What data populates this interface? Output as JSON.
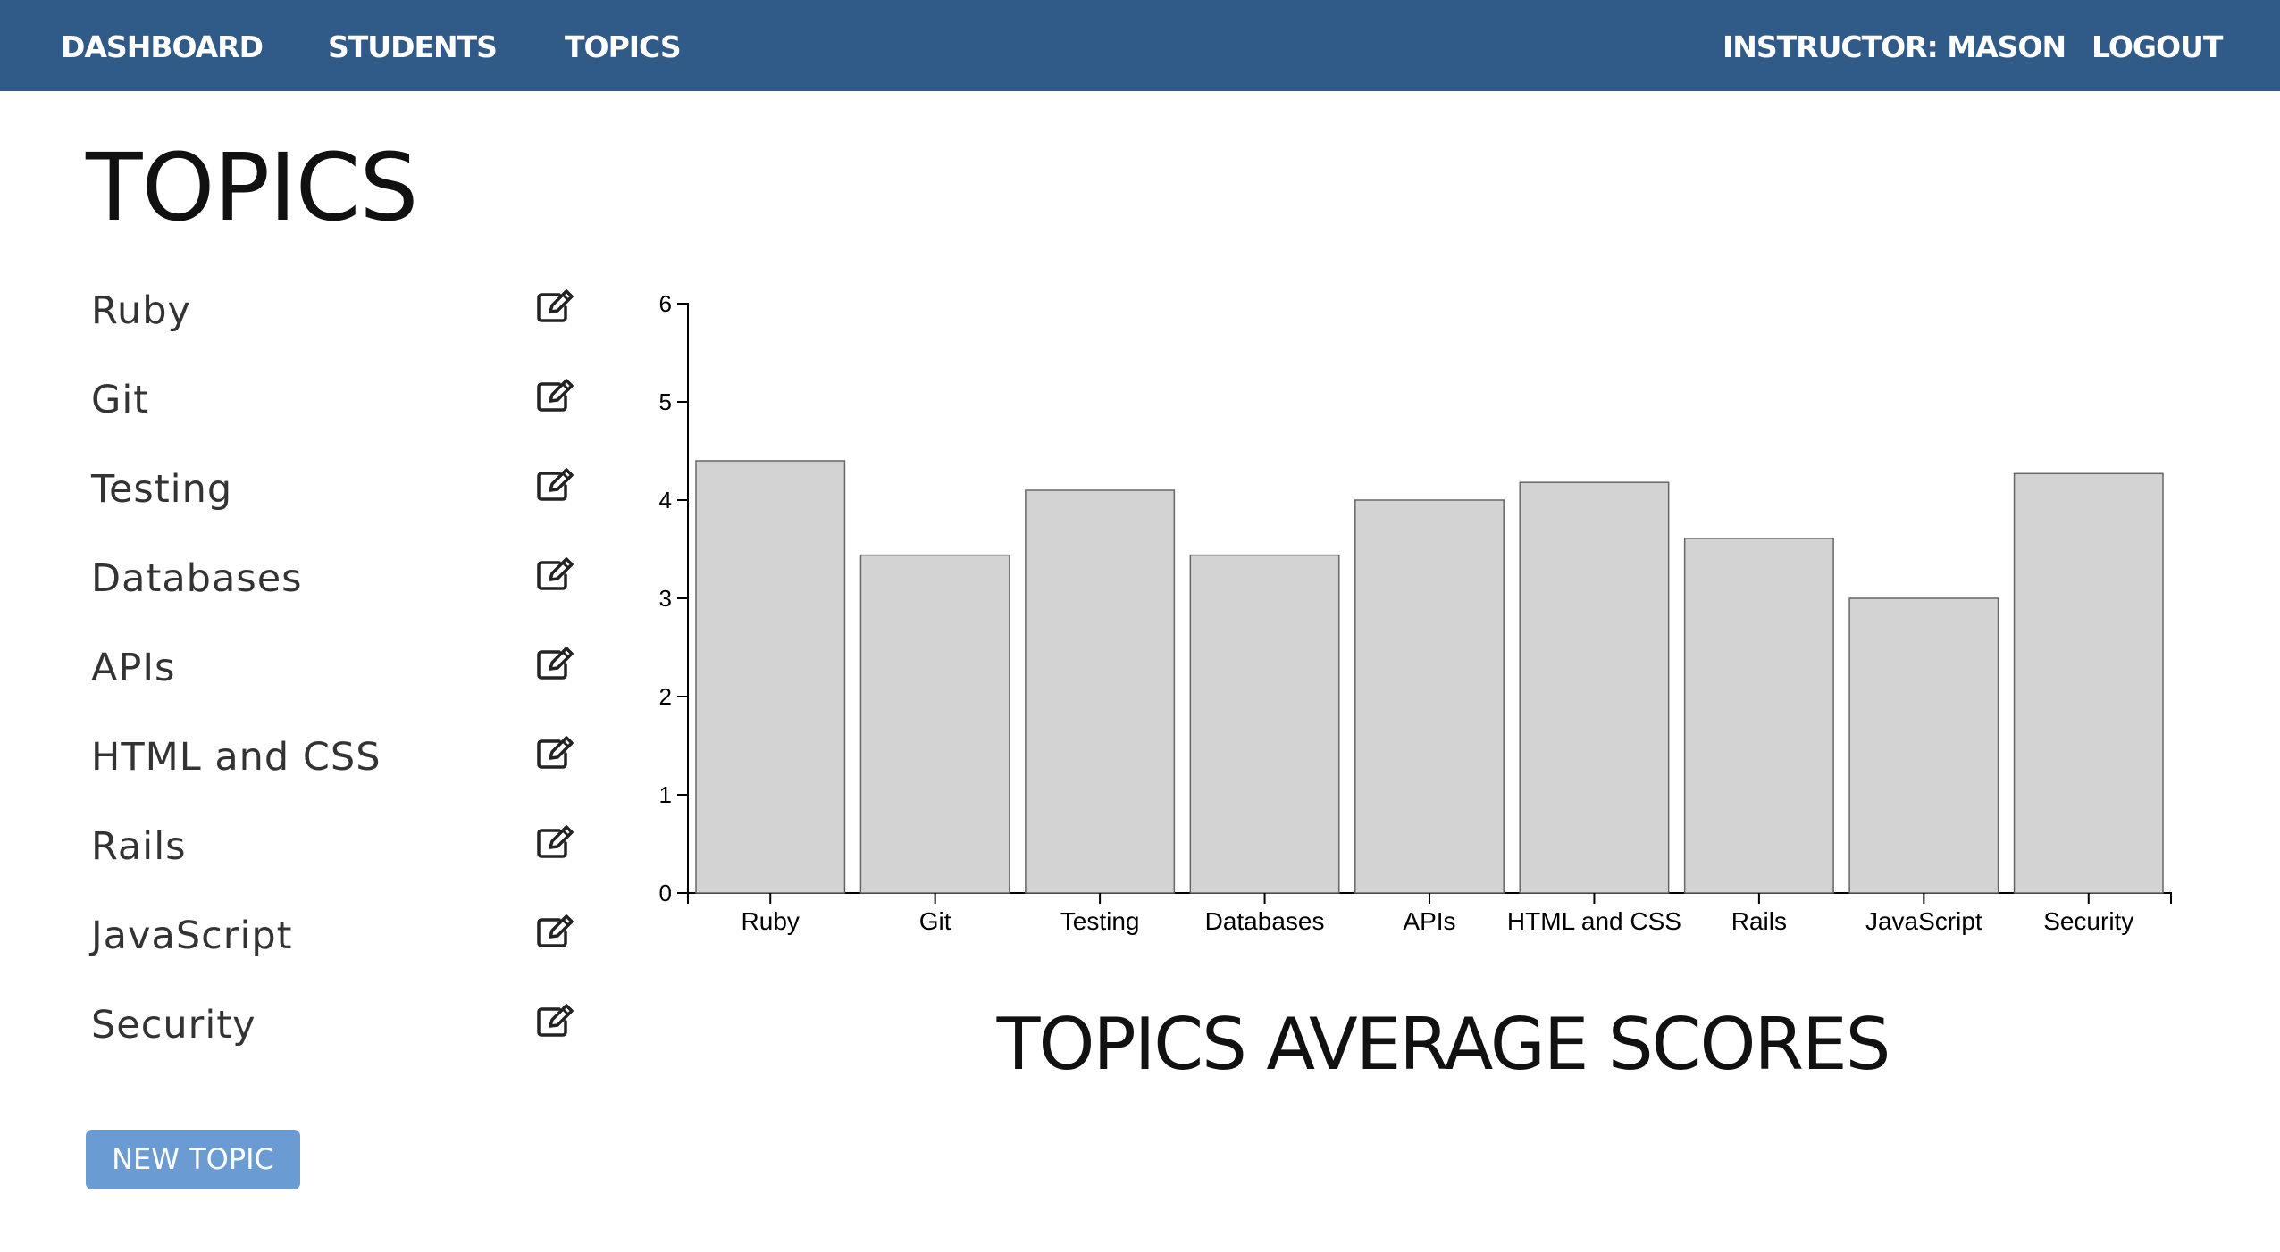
{
  "nav": {
    "dashboard": "DASHBOARD",
    "students": "STUDENTS",
    "topics": "TOPICS",
    "instructor": "INSTRUCTOR: MASON",
    "logout": "LOGOUT"
  },
  "page": {
    "title": "TOPICS",
    "new_topic_label": "NEW TOPIC"
  },
  "topics": [
    {
      "label": "Ruby",
      "icon": "edit-icon"
    },
    {
      "label": "Git",
      "icon": "edit-icon"
    },
    {
      "label": "Testing",
      "icon": "edit-icon"
    },
    {
      "label": "Databases",
      "icon": "edit-icon"
    },
    {
      "label": "APIs",
      "icon": "edit-icon"
    },
    {
      "label": "HTML and CSS",
      "icon": "edit-icon"
    },
    {
      "label": "Rails",
      "icon": "edit-icon"
    },
    {
      "label": "JavaScript",
      "icon": "edit-icon"
    },
    {
      "label": "Security",
      "icon": "edit-icon"
    }
  ],
  "colors": {
    "navbar": "#305a87",
    "button": "#6a9bd3",
    "bar_fill": "#d3d3d3",
    "bar_stroke": "#666666"
  },
  "chart_data": {
    "type": "bar",
    "title": "TOPICS AVERAGE SCORES",
    "categories": [
      "Ruby",
      "Git",
      "Testing",
      "Databases",
      "APIs",
      "HTML and CSS",
      "Rails",
      "JavaScript",
      "Security"
    ],
    "values": [
      4.4,
      3.44,
      4.1,
      3.44,
      4.0,
      4.18,
      3.61,
      3.0,
      4.27
    ],
    "yticks": [
      0,
      1,
      2,
      3,
      4,
      5,
      6
    ],
    "ylim": [
      0,
      6
    ],
    "grid": false,
    "xlabel": "",
    "ylabel": ""
  }
}
